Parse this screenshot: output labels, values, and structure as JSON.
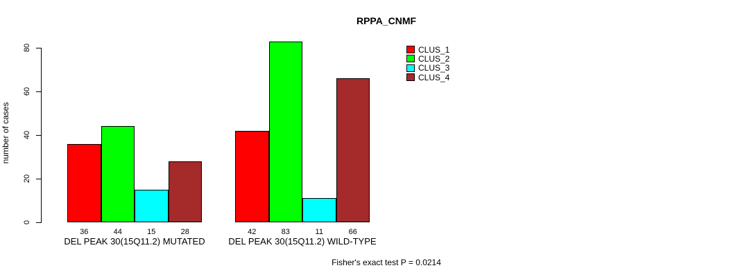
{
  "chart_data": {
    "type": "bar",
    "title": "RPPA_CNMF",
    "ylabel": "number of cases",
    "xlabel": "",
    "categories": [
      "DEL PEAK 30(15Q11.2) MUTATED",
      "DEL PEAK 30(15Q11.2) WILD-TYPE"
    ],
    "series": [
      {
        "name": "CLUS_1",
        "color": "#FF0000",
        "values": [
          36,
          42
        ]
      },
      {
        "name": "CLUS_2",
        "color": "#00FF00",
        "values": [
          44,
          83
        ]
      },
      {
        "name": "CLUS_3",
        "color": "#00FFFF",
        "values": [
          15,
          11
        ]
      },
      {
        "name": "CLUS_4",
        "color": "#A52A2A",
        "values": [
          28,
          66
        ]
      }
    ],
    "yticks": [
      0,
      20,
      40,
      60,
      80
    ],
    "ylim": [
      0,
      85
    ],
    "grid": false,
    "legend_position": "top-right-inside",
    "show_values_under_bars": true,
    "footnote": "Fisher's exact test P = 0.0214"
  }
}
